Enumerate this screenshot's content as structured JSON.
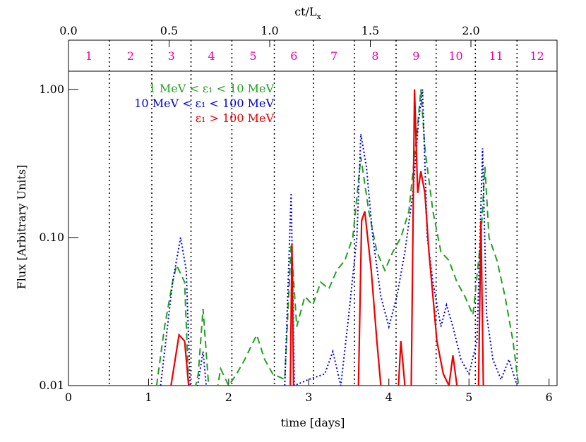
{
  "chart_data": {
    "type": "line",
    "xlabel": "time [days]",
    "ylabel": "Flux [Arbitrary Units]",
    "top_xlabel": "ct/L",
    "top_xlabel_sub": "x",
    "xlim": [
      0,
      6.1
    ],
    "xticks": [
      0,
      1,
      2,
      3,
      4,
      5,
      6
    ],
    "top_xlim": [
      0,
      2.428
    ],
    "top_xticks": [
      {
        "value": 0,
        "label": "0.0"
      },
      {
        "value": 0.5,
        "label": "0.5"
      },
      {
        "value": 1,
        "label": "1.0"
      },
      {
        "value": 1.5,
        "label": "1.5"
      },
      {
        "value": 2,
        "label": "2.0"
      }
    ],
    "ylim": [
      0.01,
      2.15
    ],
    "log_y": true,
    "yticks": [
      0.01,
      {
        "value": 0.1,
        "label": "0.10"
      },
      {
        "value": 1,
        "label": "1.00"
      }
    ],
    "region_boundaries": [
      0.51,
      1.04,
      1.53,
      2.04,
      2.57,
      3.06,
      3.57,
      4.09,
      4.59,
      5.08,
      5.6
    ],
    "region_labels": [
      "1",
      "2",
      "3",
      "4",
      "5",
      "6",
      "7",
      "8",
      "9",
      "10",
      "11",
      "12"
    ],
    "region_label_color": "#ee00aa",
    "series": [
      {
        "name": "1 MeV < ε₁ < 10 MeV",
        "color": "#22a022",
        "dash": "10,6",
        "x": [
          1.1,
          1.2,
          1.3,
          1.35,
          1.45,
          1.5,
          1.55,
          1.62,
          1.68,
          1.75,
          1.85,
          1.9,
          2.0,
          2.1,
          2.2,
          2.35,
          2.45,
          2.55,
          2.7,
          2.78,
          2.85,
          2.95,
          3.05,
          3.15,
          3.25,
          3.35,
          3.45,
          3.55,
          3.65,
          3.75,
          3.85,
          3.95,
          4.05,
          4.15,
          4.25,
          4.35,
          4.4,
          4.45,
          4.55,
          4.65,
          4.75,
          4.85,
          4.95,
          5.05,
          5.15,
          5.2,
          5.25,
          5.35,
          5.45,
          5.55,
          5.62
        ],
        "values": [
          0.01,
          0.025,
          0.05,
          0.065,
          0.05,
          0.01,
          0.008,
          0.012,
          0.033,
          0.01,
          0.009,
          0.013,
          0.01,
          0.012,
          0.015,
          0.022,
          0.015,
          0.012,
          0.011,
          0.09,
          0.025,
          0.04,
          0.035,
          0.05,
          0.045,
          0.06,
          0.07,
          0.1,
          0.35,
          0.15,
          0.08,
          0.06,
          0.08,
          0.1,
          0.15,
          0.5,
          1.0,
          0.4,
          0.15,
          0.08,
          0.07,
          0.05,
          0.04,
          0.03,
          0.1,
          0.3,
          0.1,
          0.07,
          0.04,
          0.02,
          0.01
        ]
      },
      {
        "name": "10 MeV < ε₁ < 100 MeV",
        "color": "#0000dd",
        "dash": "2,3",
        "x": [
          1.15,
          1.3,
          1.4,
          1.47,
          1.52,
          1.6,
          1.68,
          1.72,
          null,
          2.7,
          2.78,
          2.82,
          3.0,
          3.2,
          3.3,
          3.4,
          3.5,
          3.6,
          3.65,
          3.72,
          3.8,
          3.9,
          4.0,
          4.1,
          4.2,
          4.3,
          4.37,
          4.42,
          4.48,
          4.55,
          4.65,
          4.72,
          4.8,
          4.9,
          5.0,
          5.1,
          5.17,
          5.22,
          5.3,
          5.4,
          5.5,
          5.6
        ],
        "values": [
          0.01,
          0.05,
          0.1,
          0.06,
          0.01,
          0.009,
          0.017,
          0.01,
          null,
          0.01,
          0.2,
          0.01,
          0.011,
          0.012,
          0.017,
          0.01,
          0.03,
          0.1,
          0.5,
          0.3,
          0.1,
          0.04,
          0.025,
          0.04,
          0.08,
          0.2,
          0.6,
          1.0,
          0.1,
          0.05,
          0.025,
          0.035,
          0.025,
          0.015,
          0.012,
          0.02,
          0.4,
          0.03,
          0.015,
          0.011,
          0.015,
          0.01
        ]
      },
      {
        "name": "ε₁ > 100 MeV",
        "color": "#ee0000",
        "dash": "",
        "x": [
          1.28,
          1.38,
          1.45,
          1.5,
          null,
          2.77,
          2.79,
          2.81,
          null,
          3.62,
          3.66,
          3.7,
          3.78,
          3.85,
          3.9,
          null,
          4.12,
          4.15,
          4.2,
          null,
          4.28,
          4.32,
          4.36,
          4.4,
          4.45,
          4.5,
          4.55,
          4.6,
          4.68,
          4.75,
          4.8,
          4.85,
          null,
          5.12,
          5.15,
          5.18
        ],
        "values": [
          0.01,
          0.022,
          0.02,
          0.01,
          null,
          0.01,
          0.09,
          0.01,
          null,
          0.01,
          0.13,
          0.15,
          0.06,
          0.02,
          0.01,
          null,
          0.01,
          0.02,
          0.01,
          null,
          0.01,
          1.0,
          0.2,
          0.28,
          0.2,
          0.08,
          0.04,
          0.02,
          0.012,
          0.01,
          0.016,
          0.01,
          null,
          0.01,
          0.13,
          0.01
        ]
      }
    ]
  }
}
